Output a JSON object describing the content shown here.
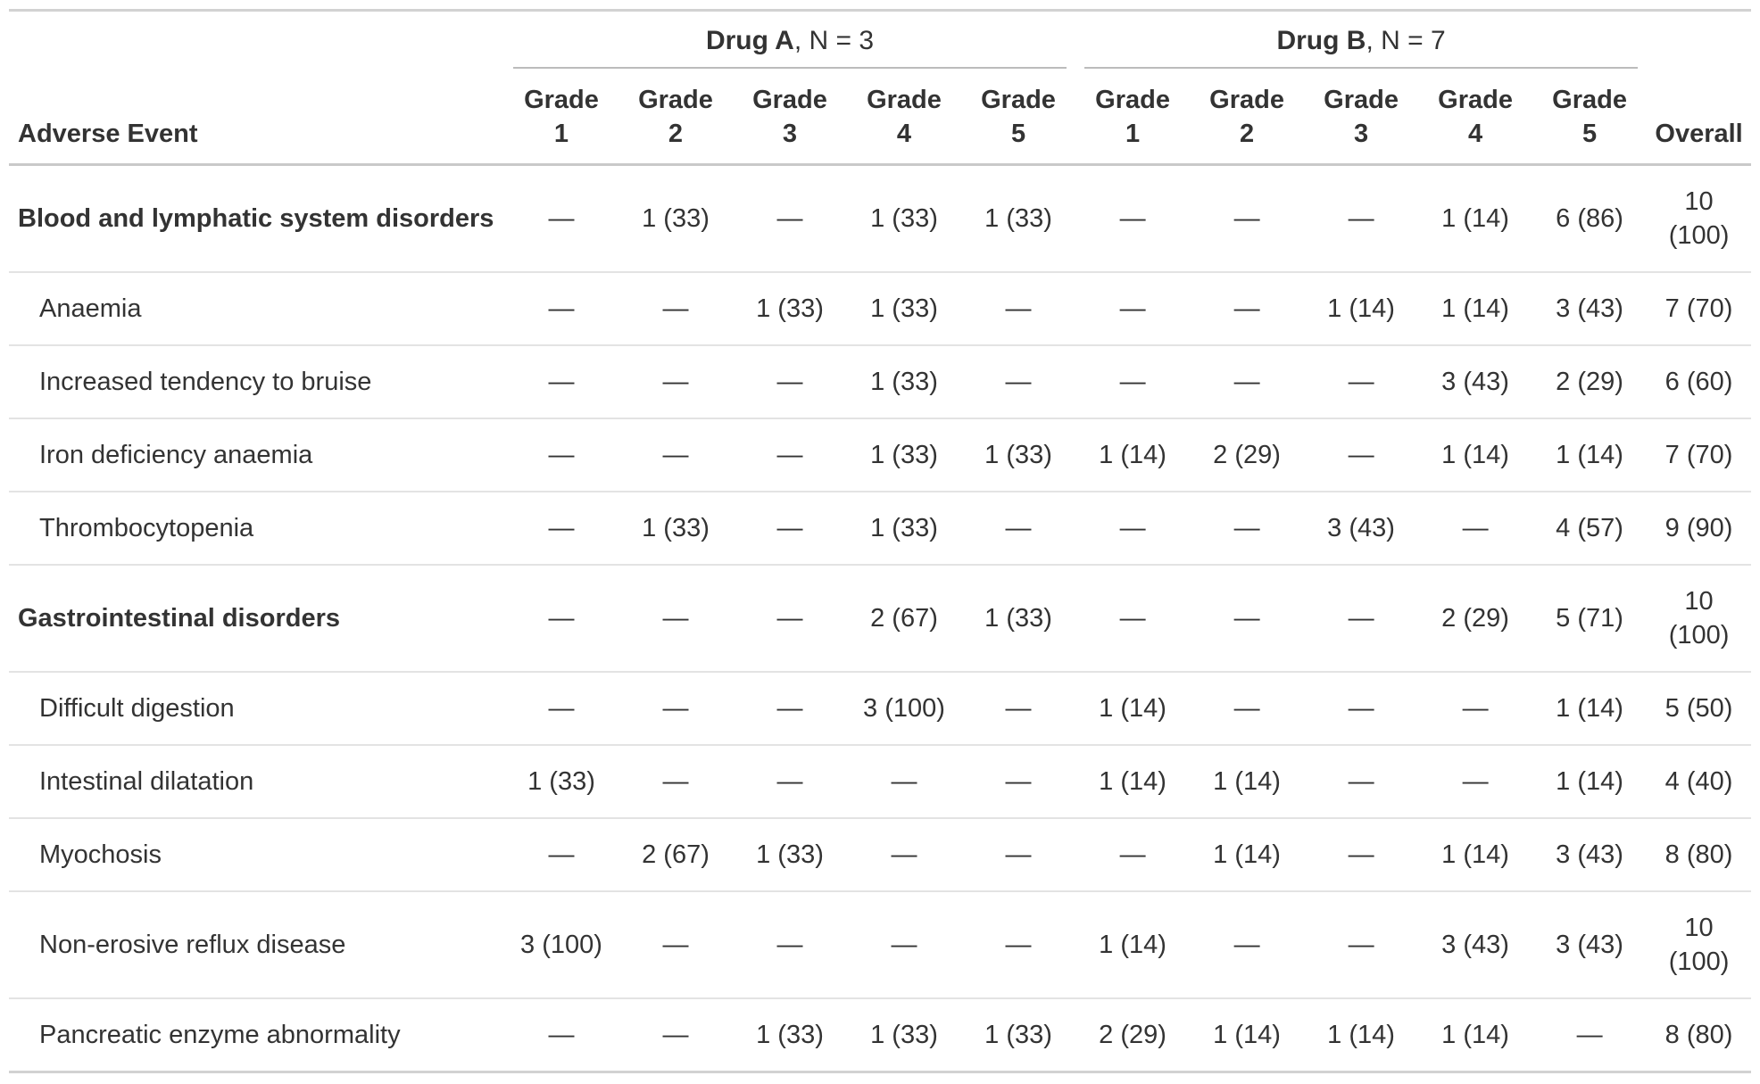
{
  "header": {
    "stub": "Adverse Event",
    "overall": "Overall",
    "spanners": [
      {
        "drug": "Drug A",
        "n": ", N = 3"
      },
      {
        "drug": "Drug B",
        "n": ", N = 7"
      }
    ],
    "grade_columns": [
      {
        "drug": "a",
        "word": "Grade",
        "number": "1"
      },
      {
        "drug": "a",
        "word": "Grade",
        "number": "2"
      },
      {
        "drug": "a",
        "word": "Grade",
        "number": "3"
      },
      {
        "drug": "a",
        "word": "Grade",
        "number": "4"
      },
      {
        "drug": "a",
        "word": "Grade",
        "number": "5"
      },
      {
        "drug": "b",
        "word": "Grade",
        "number": "1"
      },
      {
        "drug": "b",
        "word": "Grade",
        "number": "2"
      },
      {
        "drug": "b",
        "word": "Grade",
        "number": "3"
      },
      {
        "drug": "b",
        "word": "Grade",
        "number": "4"
      },
      {
        "drug": "b",
        "word": "Grade",
        "number": "5"
      }
    ]
  },
  "rows": [
    {
      "label": "Blood and lymphatic system disorders",
      "group": true,
      "values": [
        "—",
        "1 (33)",
        "—",
        "1 (33)",
        "1 (33)",
        "—",
        "—",
        "—",
        "1 (14)",
        "6 (86)",
        "10 (100)"
      ]
    },
    {
      "label": "Anaemia",
      "group": false,
      "values": [
        "—",
        "—",
        "1 (33)",
        "1 (33)",
        "—",
        "—",
        "—",
        "1 (14)",
        "1 (14)",
        "3 (43)",
        "7 (70)"
      ]
    },
    {
      "label": "Increased tendency to bruise",
      "group": false,
      "values": [
        "—",
        "—",
        "—",
        "1 (33)",
        "—",
        "—",
        "—",
        "—",
        "3 (43)",
        "2 (29)",
        "6 (60)"
      ]
    },
    {
      "label": "Iron deficiency anaemia",
      "group": false,
      "values": [
        "—",
        "—",
        "—",
        "1 (33)",
        "1 (33)",
        "1 (14)",
        "2 (29)",
        "—",
        "1 (14)",
        "1 (14)",
        "7 (70)"
      ]
    },
    {
      "label": "Thrombocytopenia",
      "group": false,
      "values": [
        "—",
        "1 (33)",
        "—",
        "1 (33)",
        "—",
        "—",
        "—",
        "3 (43)",
        "—",
        "4 (57)",
        "9 (90)"
      ]
    },
    {
      "label": "Gastrointestinal disorders",
      "group": true,
      "values": [
        "—",
        "—",
        "—",
        "2 (67)",
        "1 (33)",
        "—",
        "—",
        "—",
        "2 (29)",
        "5 (71)",
        "10 (100)"
      ]
    },
    {
      "label": "Difficult digestion",
      "group": false,
      "values": [
        "—",
        "—",
        "—",
        "3 (100)",
        "—",
        "1 (14)",
        "—",
        "—",
        "—",
        "1 (14)",
        "5 (50)"
      ]
    },
    {
      "label": "Intestinal dilatation",
      "group": false,
      "values": [
        "1 (33)",
        "—",
        "—",
        "—",
        "—",
        "1 (14)",
        "1 (14)",
        "—",
        "—",
        "1 (14)",
        "4 (40)"
      ]
    },
    {
      "label": "Myochosis",
      "group": false,
      "values": [
        "—",
        "2 (67)",
        "1 (33)",
        "—",
        "—",
        "—",
        "1 (14)",
        "—",
        "1 (14)",
        "3 (43)",
        "8 (80)"
      ]
    },
    {
      "label": "Non-erosive reflux disease",
      "group": false,
      "values": [
        "3 (100)",
        "—",
        "—",
        "—",
        "—",
        "1 (14)",
        "—",
        "—",
        "3 (43)",
        "3 (43)",
        "10 (100)"
      ]
    },
    {
      "label": "Pancreatic enzyme abnormality",
      "group": false,
      "values": [
        "—",
        "—",
        "1 (33)",
        "1 (33)",
        "1 (33)",
        "2 (29)",
        "1 (14)",
        "1 (14)",
        "1 (14)",
        "—",
        "8 (80)"
      ]
    }
  ],
  "colors": {
    "text": "#333333",
    "bg": "#ffffff",
    "border_outer": "#d2d2d2",
    "border_header": "#c9c9c9",
    "border_row": "#e3e3e3",
    "border_spanner": "#bcbcbc"
  }
}
